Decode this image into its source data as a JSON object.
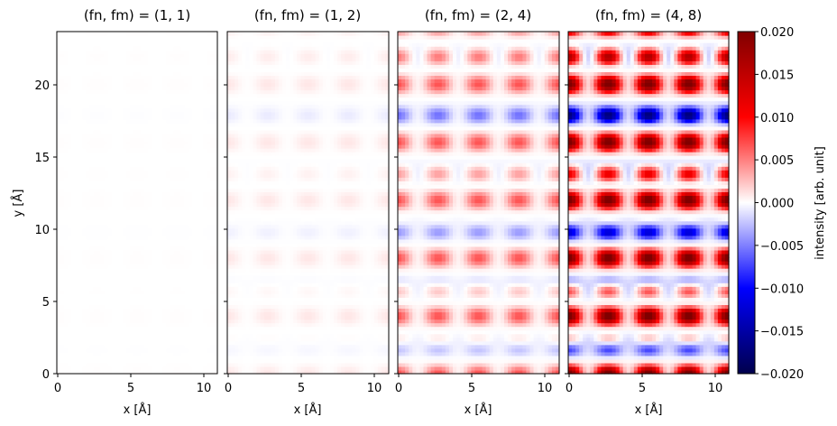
{
  "chart_data": [
    {
      "type": "heatmap",
      "title": "(fn, fm) = (1, 1)",
      "xlabel": "x [Å]",
      "ylabel": "y [Å]",
      "xlim": [
        0,
        11
      ],
      "ylim": [
        0,
        23.6
      ],
      "xticks": [
        "0",
        "5",
        "10"
      ],
      "yticks": [
        "0",
        "5",
        "10",
        "15",
        "20"
      ],
      "amplitude": 0.0001
    },
    {
      "type": "heatmap",
      "title": "(fn, fm) = (1, 2)",
      "xlabel": "x [Å]",
      "xlim": [
        0,
        11
      ],
      "ylim": [
        0,
        23.6
      ],
      "xticks": [
        "0",
        "5",
        "10"
      ],
      "amplitude": 0.001
    },
    {
      "type": "heatmap",
      "title": "(fn, fm) = (2, 4)",
      "xlabel": "x [Å]",
      "xlim": [
        0,
        11
      ],
      "ylim": [
        0,
        23.6
      ],
      "xticks": [
        "0",
        "5",
        "10"
      ],
      "amplitude": 0.007
    },
    {
      "type": "heatmap",
      "title": "(fn, fm) = (4, 8)",
      "xlabel": "x [Å]",
      "xlim": [
        0,
        11
      ],
      "ylim": [
        0,
        23.6
      ],
      "xticks": [
        "0",
        "5",
        "10"
      ],
      "amplitude": 0.022
    }
  ],
  "colorbar": {
    "label": "intensity [arb. unit]",
    "range": [
      -0.02,
      0.02
    ],
    "ticks": [
      "0.020",
      "0.015",
      "0.010",
      "0.005",
      "0.000",
      "−0.005",
      "−0.010",
      "−0.015",
      "−0.020"
    ],
    "colormap": "seismic",
    "colors": [
      "#00004c",
      "#0000ff",
      "#ffffff",
      "#ff0000",
      "#800000"
    ]
  }
}
